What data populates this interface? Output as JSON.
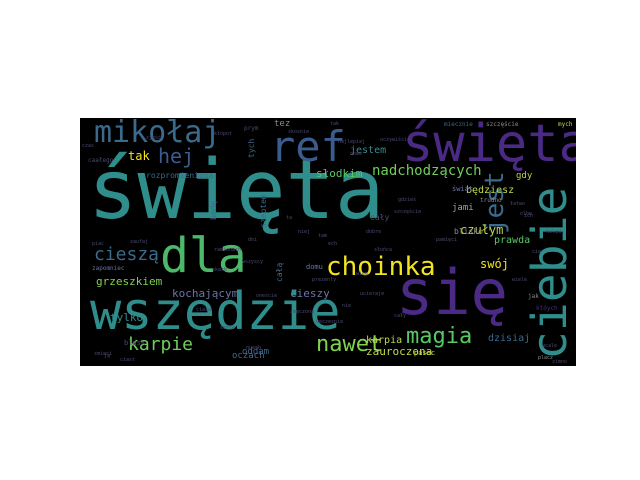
{
  "canvas_background": "#000000",
  "page_background": "#ffffff",
  "words": [
    {
      "text": "święta",
      "color": "#2f8e8c"
    },
    {
      "text": "wszędzie",
      "color": "#2f8e8c"
    },
    {
      "text": "się",
      "color": "#4a2a84"
    },
    {
      "text": "święta",
      "color": "#4a2a84"
    },
    {
      "text": "ref",
      "color": "#3b5c8f"
    },
    {
      "text": "mikołaj",
      "color": "#3a6a8c"
    },
    {
      "text": "ciebie",
      "color": "#2f8e8c"
    },
    {
      "text": "dla",
      "color": "#4cb86a"
    },
    {
      "text": "choinka",
      "color": "#f2e41f"
    },
    {
      "text": "hej",
      "color": "#3b5c8f"
    },
    {
      "text": "jest",
      "color": "#3a6a8c"
    },
    {
      "text": "magia",
      "color": "#5ac864"
    },
    {
      "text": "nawet",
      "color": "#7fd34e"
    },
    {
      "text": "karpie",
      "color": "#6fcf5a"
    },
    {
      "text": "cieszą",
      "color": "#3a6a8c"
    },
    {
      "text": "nadchodzących",
      "color": "#6fcf5a"
    },
    {
      "text": "słodkim",
      "color": "#5ac864"
    },
    {
      "text": "tak",
      "color": "#f2e41f"
    },
    {
      "text": "jestem",
      "color": "#3b8a8c"
    },
    {
      "text": "grzeszkiem",
      "color": "#7fd34e"
    },
    {
      "text": "kochającym",
      "color": "#6a74a8"
    },
    {
      "text": "tylko",
      "color": "#2f8e8c"
    },
    {
      "text": "oddam",
      "color": "#3a6a8c"
    },
    {
      "text": "oczach",
      "color": "#4a6a8c"
    },
    {
      "text": "cieszy",
      "color": "#6a74a8"
    },
    {
      "text": "zauroczona",
      "color": "#c2d84a"
    },
    {
      "text": "dzisiaj",
      "color": "#3a6a8c"
    },
    {
      "text": "karpia",
      "color": "#c2d84a"
    },
    {
      "text": "swój",
      "color": "#f2e41f"
    },
    {
      "text": "czułym",
      "color": "#b8d44a"
    },
    {
      "text": "prawda",
      "color": "#5ac864"
    },
    {
      "text": "gdy",
      "color": "#b8d44a"
    },
    {
      "text": "będziesz",
      "color": "#c2d84a"
    },
    {
      "text": "jami",
      "color": "#a0a0a0"
    },
    {
      "text": "blisko",
      "color": "#8a8a8a"
    },
    {
      "text": "świat",
      "color": "#6a74a8"
    },
    {
      "text": "cały",
      "color": "#4a4a70"
    },
    {
      "text": "tez",
      "color": "#8a8a8a"
    },
    {
      "text": "tych",
      "color": "#3a6a8c"
    },
    {
      "text": "rozpromieniona",
      "color": "#3a6a8c"
    },
    {
      "text": "bedę",
      "color": "#3a6a8c"
    },
    {
      "text": "szeptem",
      "color": "#3a6a8c"
    },
    {
      "text": "całą",
      "color": "#4a6a8c"
    },
    {
      "text": "blask",
      "color": "#4a4a70"
    },
    {
      "text": "domu",
      "color": "#6a74a8"
    },
    {
      "text": "pasec",
      "color": "#c2d84a"
    },
    {
      "text": "jak",
      "color": "#8a8a8a"
    },
    {
      "text": "któych",
      "color": "#4a2a84"
    },
    {
      "text": "mych",
      "color": "#c2d84a"
    },
    {
      "text": "szczęście",
      "color": "#8a8a8a"
    },
    {
      "text": "miecznie",
      "color": "#3a6a8c"
    },
    {
      "text": "trudno",
      "color": "#8a8a8a"
    },
    {
      "text": "zapomniec",
      "color": "#6a74a8"
    },
    {
      "text": "caałego",
      "color": "#4a4a70"
    },
    {
      "text": "prym",
      "color": "#4a4a70"
    },
    {
      "text": "ueczesnie",
      "color": "#4a4a70"
    },
    {
      "text": "nuech",
      "color": "#4a4a70"
    },
    {
      "text": "smieci",
      "color": "#4a4a70"
    },
    {
      "text": "ciast",
      "color": "#4a4a70"
    },
    {
      "text": "piac",
      "color": "#4a4a70"
    },
    {
      "text": "zaufaj",
      "color": "#4a4a70"
    },
    {
      "text": "ramionach",
      "color": "#4a4a70"
    },
    {
      "text": "placz",
      "color": "#8a8a8a"
    },
    {
      "text": "olbo",
      "color": "#4a4a70"
    },
    {
      "text": "zjeść",
      "color": "#4a4a70"
    },
    {
      "text": "czas",
      "color": "#4a4a70"
    },
    {
      "text": "nie",
      "color": "#4a4a70"
    },
    {
      "text": "ucieraje",
      "color": "#4a4a70"
    },
    {
      "text": "słońca",
      "color": "#4a4a70"
    },
    {
      "text": "skosnie",
      "color": "#4a4a70"
    },
    {
      "text": "kłopot",
      "color": "#4a4a70"
    },
    {
      "text": "dni",
      "color": "#4a4a70"
    },
    {
      "text": "dobre",
      "color": "#4a4a70"
    },
    {
      "text": "cały",
      "color": "#4a4a70"
    },
    {
      "text": "tak",
      "color": "#4a4a70"
    },
    {
      "text": "gdzieś",
      "color": "#4a4a70"
    },
    {
      "text": "wszyscy",
      "color": "#4a4a70"
    },
    {
      "text": "oneście",
      "color": "#4a4a70"
    },
    {
      "text": "wiem",
      "color": "#4a4a70"
    },
    {
      "text": "skarb",
      "color": "#4a4a70"
    },
    {
      "text": "ciała",
      "color": "#4a4a70"
    },
    {
      "text": "zmęczona",
      "color": "#4a4a70"
    },
    {
      "text": "serce",
      "color": "#4a4a70"
    },
    {
      "text": "moja",
      "color": "#4a4a70"
    },
    {
      "text": "oczywiście",
      "color": "#4a4a70"
    },
    {
      "text": "najlepiej",
      "color": "#4a4a70"
    },
    {
      "text": "nowe",
      "color": "#4a4a70"
    },
    {
      "text": "szczęście",
      "color": "#4a4a70"
    },
    {
      "text": "pamięci",
      "color": "#4a4a70"
    },
    {
      "text": "kolęd",
      "color": "#4a4a70"
    },
    {
      "text": "prezenty",
      "color": "#4a4a70"
    },
    {
      "text": "ta",
      "color": "#4a4a70"
    },
    {
      "text": "niej",
      "color": "#4a4a70"
    },
    {
      "text": "tam",
      "color": "#4a4a70"
    },
    {
      "text": "ech",
      "color": "#4a4a70"
    },
    {
      "text": "wiele",
      "color": "#4a4a70"
    },
    {
      "text": "łatwo",
      "color": "#4a4a70"
    },
    {
      "text": "ich",
      "color": "#4a4a70"
    },
    {
      "text": "cie",
      "color": "#4a4a70"
    },
    {
      "text": "wcale",
      "color": "#4a4a70"
    },
    {
      "text": "zimno",
      "color": "#4a4a70"
    },
    {
      "text": "ją",
      "color": "#4a4a70"
    }
  ]
}
